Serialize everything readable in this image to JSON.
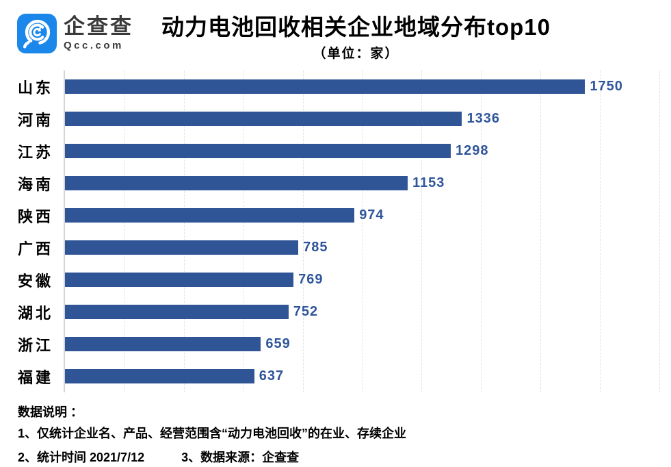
{
  "header": {
    "logo": {
      "brand_cn": "企查查",
      "brand_domain": "Qcc.com",
      "icon_bg_color": "#1b87ea"
    },
    "title": "动力电池回收相关企业地域分布top10",
    "subtitle": "（单位：家）"
  },
  "chart_data": {
    "type": "bar",
    "orientation": "horizontal",
    "title": "动力电池回收相关企业地域分布top10",
    "unit_label": "（单位：家）",
    "categories": [
      "山东",
      "河南",
      "江苏",
      "海南",
      "陕西",
      "广西",
      "安徽",
      "湖北",
      "浙江",
      "福建"
    ],
    "values": [
      1750,
      1336,
      1298,
      1153,
      974,
      785,
      769,
      752,
      659,
      637
    ],
    "xlabel": "",
    "ylabel": "",
    "xlim": [
      0,
      2000
    ],
    "gridline_step": 200,
    "grid": true,
    "bar_color": "#2f5596",
    "value_label_color": "#2f559b",
    "legend": "none"
  },
  "footer": {
    "notes_title": "数据说明 ：",
    "note_1": "1、仅统计企业名、产品、经营范围含“动力电池回收”的在业、存续企业",
    "note_2": "2、统计时间 2021/7/12",
    "note_3": "3、数据来源：企查查"
  }
}
